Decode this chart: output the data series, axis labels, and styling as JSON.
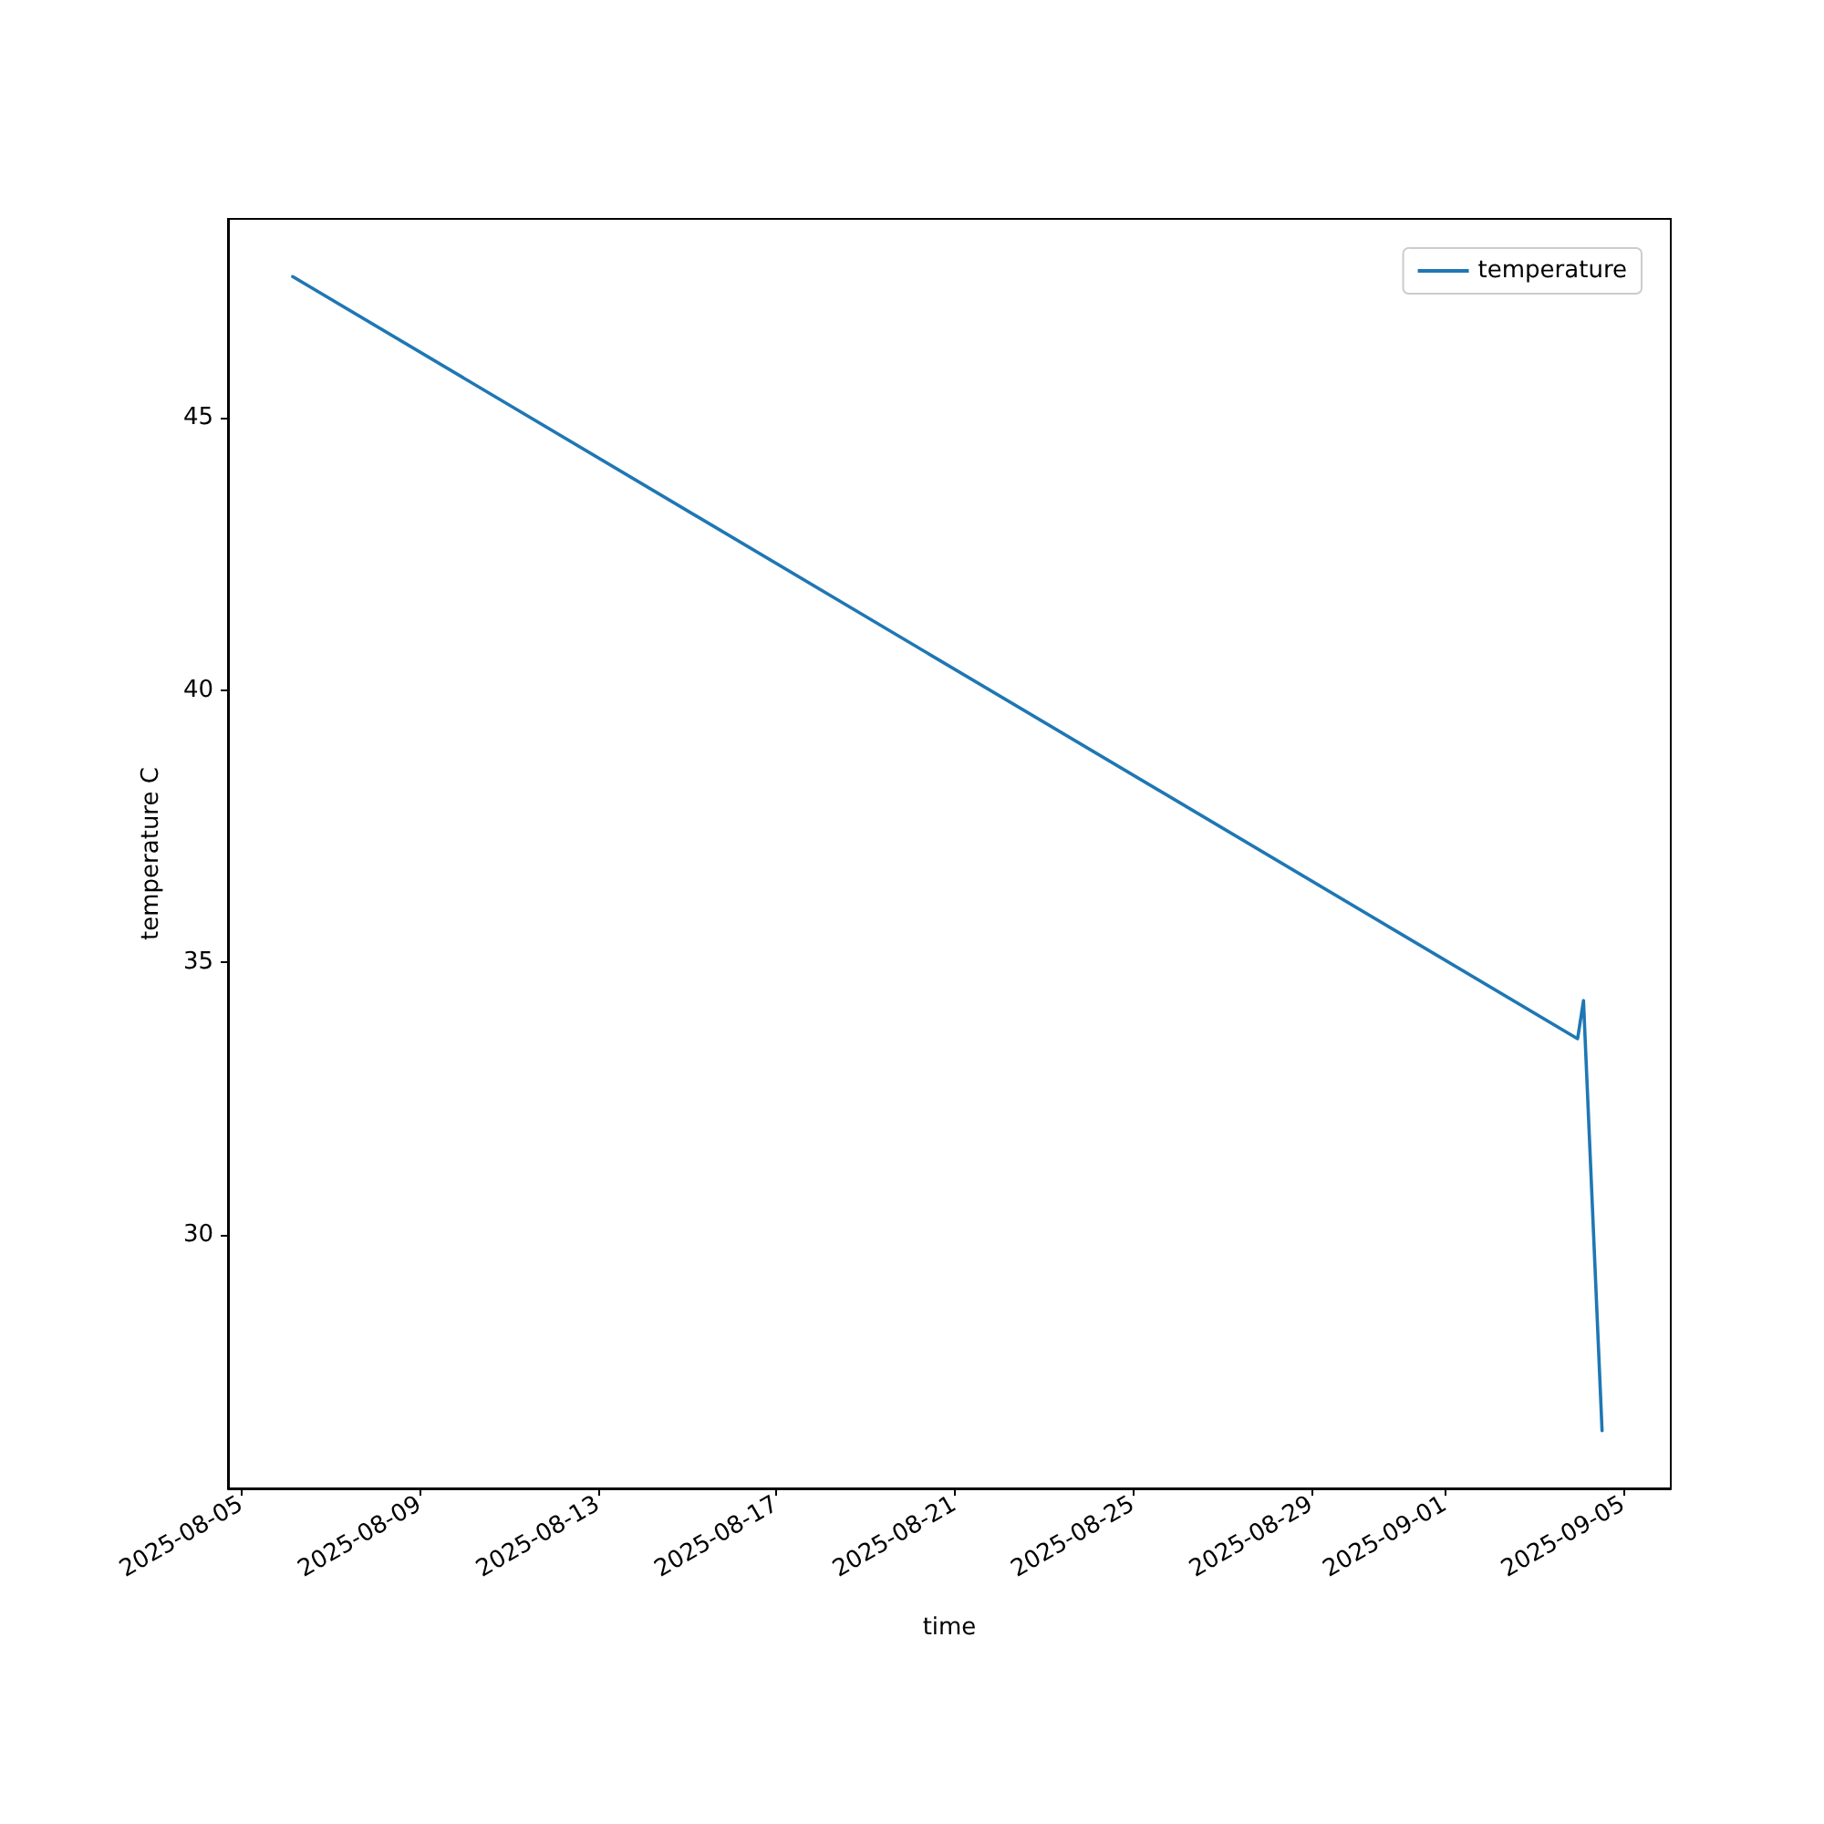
{
  "chart_data": {
    "type": "line",
    "xlabel": "time",
    "ylabel": "temperature C",
    "x": [
      "2025-08-06T03:40",
      "2025-09-03T23:30",
      "2025-09-04T02:40",
      "2025-09-04T12:40"
    ],
    "series": [
      {
        "name": "temperature",
        "color": "#1f77b4",
        "values": [
          47.6,
          33.6,
          34.3,
          26.4
        ]
      }
    ],
    "xlim": [
      "2025-08-04T16:50",
      "2025-09-06T01:40"
    ],
    "xticks": [
      "2025-08-05",
      "2025-08-09",
      "2025-08-13",
      "2025-08-17",
      "2025-08-21",
      "2025-08-25",
      "2025-08-29",
      "2025-09-01",
      "2025-09-05"
    ],
    "ylim": [
      25.34,
      48.66
    ],
    "yticks": [
      30,
      35,
      40,
      45
    ],
    "grid": false,
    "legend": "top right",
    "marker": "none",
    "line_style": "solid"
  }
}
